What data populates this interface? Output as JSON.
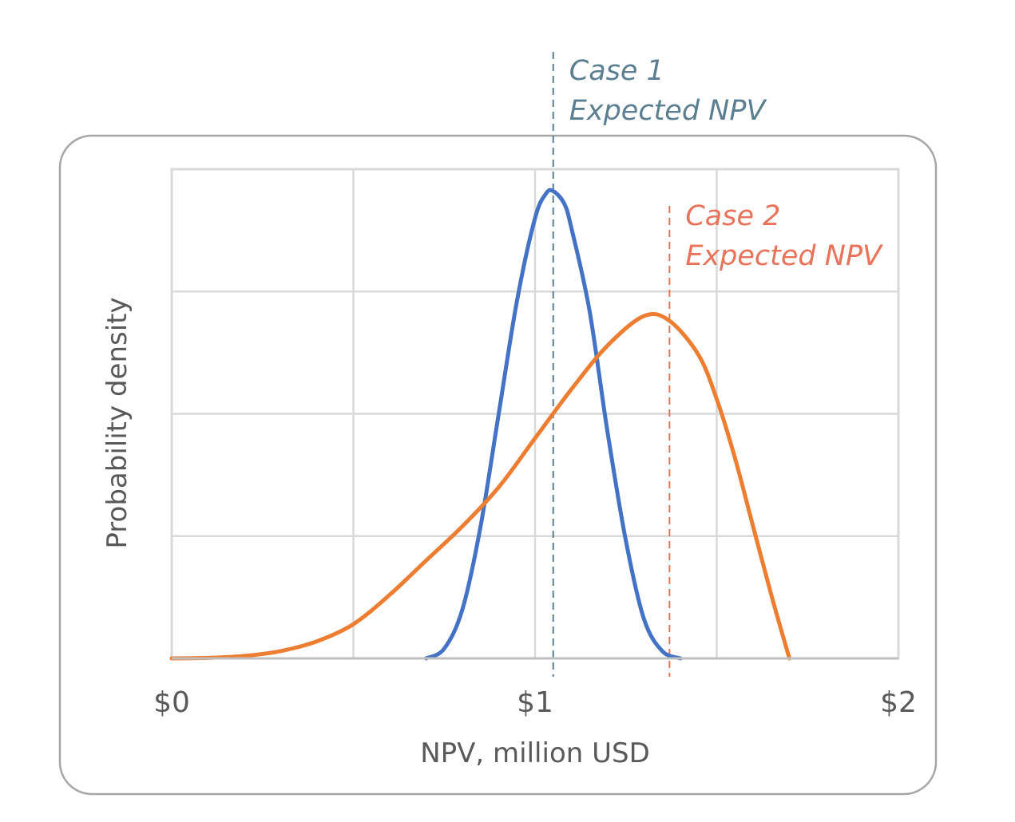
{
  "chart_data": {
    "type": "line",
    "xlabel": "NPV, million USD",
    "ylabel": "Probability density",
    "xlim": [
      0,
      2
    ],
    "ylim": [
      0,
      1
    ],
    "x_ticks": [
      "$0",
      "$1",
      "$2"
    ],
    "grid": true,
    "x_gridlines": [
      0.5,
      1.0,
      1.5
    ],
    "y_gridlines": [
      0.25,
      0.5,
      0.75
    ],
    "legend": "none",
    "series": [
      {
        "color": "#4472C4",
        "x": [
          0.7,
          0.75,
          0.8,
          0.85,
          0.9,
          0.95,
          1.0,
          1.03,
          1.05,
          1.08,
          1.1,
          1.15,
          1.2,
          1.25,
          1.3,
          1.35,
          1.4
        ],
        "y": [
          0.0,
          0.02,
          0.1,
          0.27,
          0.5,
          0.73,
          0.9,
          0.95,
          0.955,
          0.93,
          0.88,
          0.71,
          0.46,
          0.24,
          0.08,
          0.015,
          0.0
        ]
      },
      {
        "color": "#ED7D31",
        "x": [
          0.0,
          0.1,
          0.2,
          0.3,
          0.4,
          0.5,
          0.6,
          0.7,
          0.8,
          0.9,
          1.0,
          1.1,
          1.2,
          1.3,
          1.37,
          1.45,
          1.5,
          1.55,
          1.6,
          1.65,
          1.7
        ],
        "y": [
          0.0,
          0.001,
          0.005,
          0.015,
          0.035,
          0.07,
          0.13,
          0.2,
          0.27,
          0.35,
          0.45,
          0.55,
          0.64,
          0.7,
          0.69,
          0.62,
          0.53,
          0.41,
          0.27,
          0.13,
          0.0
        ]
      }
    ],
    "annotations": [
      {
        "lines": [
          "Case 1",
          "Expected NPV"
        ],
        "x": 1.05,
        "color": "#5B7F91"
      },
      {
        "lines": [
          "Case 2",
          "Expected NPV"
        ],
        "x": 1.37,
        "color": "#E8735A"
      }
    ]
  }
}
